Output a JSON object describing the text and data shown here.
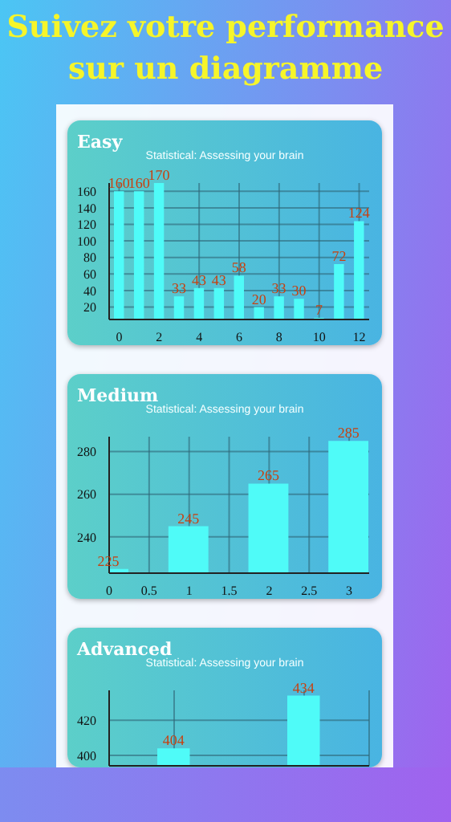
{
  "chart_data": [
    {
      "type": "other",
      "title": "Suivez votre performance sur un diagramme"
    },
    {
      "type": "bar",
      "title": "Easy",
      "subtitle": "Statistical: Assessing your brain",
      "x": [
        0,
        1,
        2,
        3,
        4,
        5,
        6,
        7,
        8,
        9,
        10,
        11,
        12
      ],
      "values": [
        160,
        160,
        170,
        33,
        43,
        43,
        58,
        20,
        33,
        30,
        7,
        72,
        124
      ],
      "color": "#4ffbf8",
      "xlim": [
        -0.5,
        12.5
      ],
      "xticks": [
        0,
        2,
        4,
        6,
        8,
        10,
        12
      ],
      "ylim": [
        5,
        170
      ],
      "yticks": [
        20,
        40,
        60,
        80,
        100,
        120,
        140,
        160
      ],
      "grid": true,
      "data_labels": true
    },
    {
      "type": "bar",
      "title": "Medium",
      "subtitle": "Statistical: Assessing your brain",
      "x": [
        0,
        1,
        2,
        3
      ],
      "values": [
        225,
        245,
        265,
        285
      ],
      "color": "#4ffbf8",
      "xlim": [
        0,
        3.25
      ],
      "xticks": [
        0,
        0.5,
        1,
        1.5,
        2,
        2.5,
        3
      ],
      "ylim": [
        223,
        287
      ],
      "yticks": [
        240,
        260,
        280
      ],
      "grid": true,
      "data_labels": true
    },
    {
      "type": "bar",
      "title": "Advanced",
      "subtitle": "Statistical: Assessing your brain",
      "categories": [
        null,
        null
      ],
      "values": [
        404,
        434
      ],
      "color": "#4ffbf8",
      "ylim": [
        394,
        437
      ],
      "yticks": [
        400,
        420
      ],
      "grid": true,
      "data_labels": true,
      "tick_labels": "y"
    }
  ]
}
